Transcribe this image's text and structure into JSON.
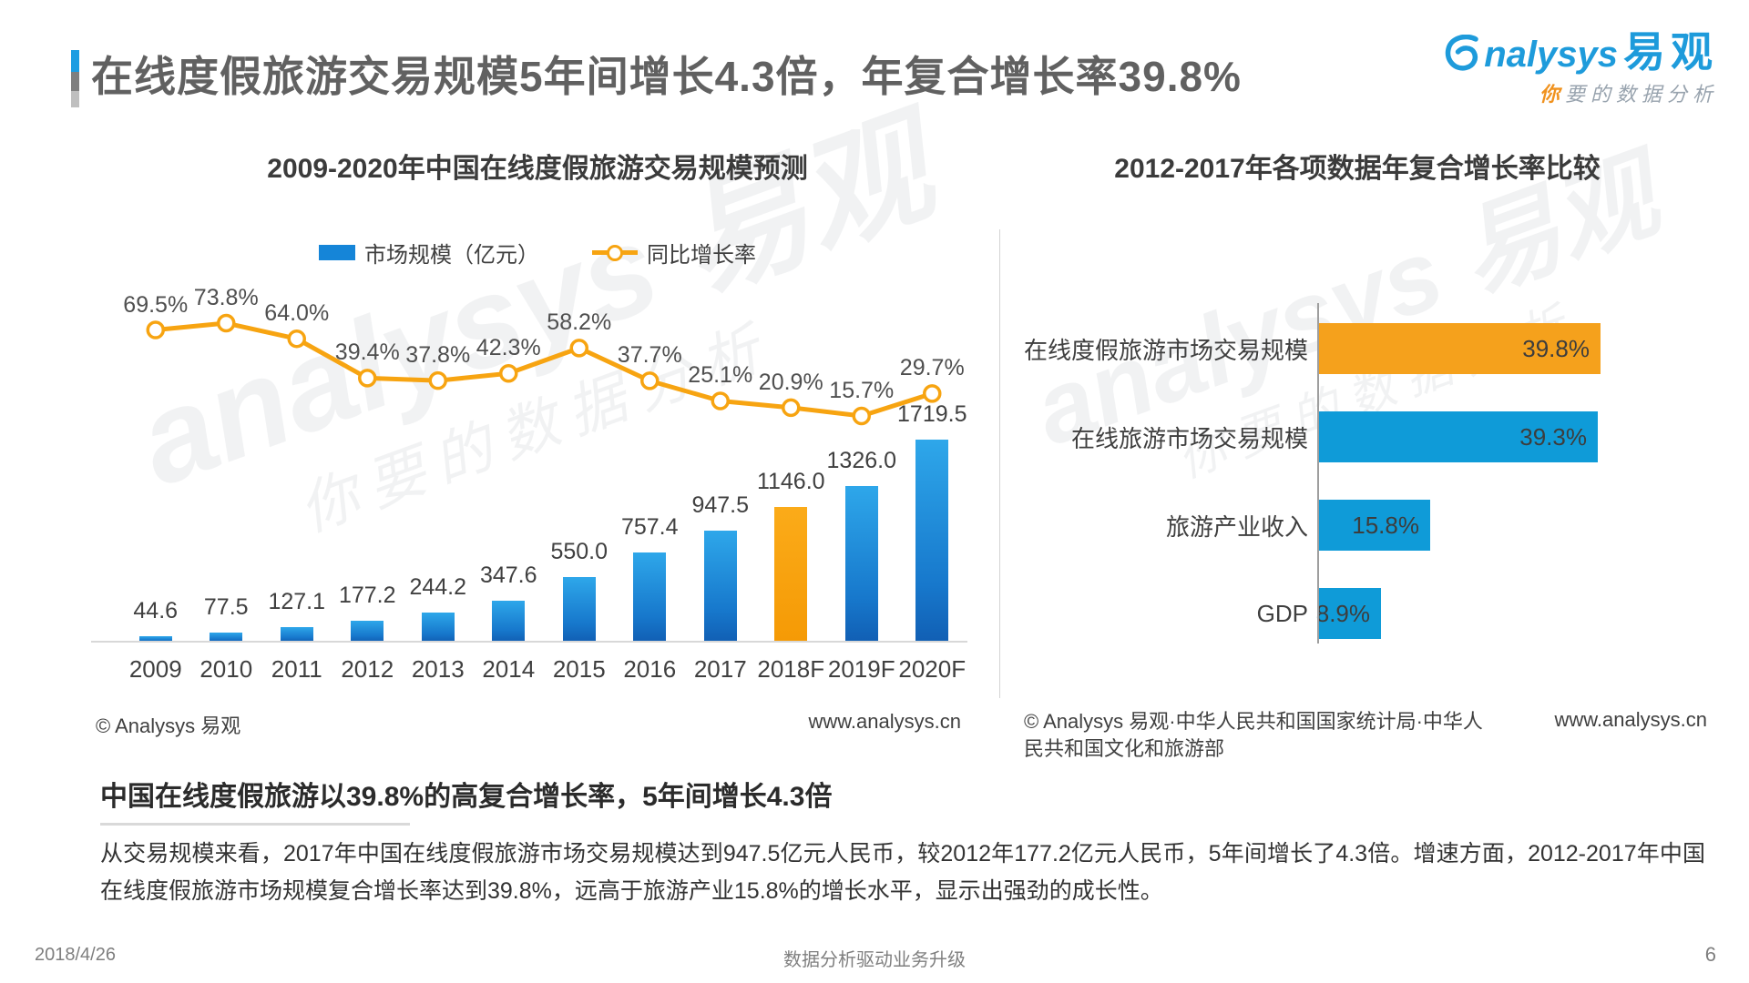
{
  "header": {
    "title": "在线度假旅游交易规模5年间增长4.3倍，年复合增长率39.8%",
    "logo": {
      "brand_rest": "nalysys",
      "brand_cn": "易观",
      "tagline_first": "你",
      "tagline_rest": "要的数据分析"
    }
  },
  "watermark": {
    "line1": "analysys 易观",
    "line2": "你要的数据分析"
  },
  "chart_data": [
    {
      "type": "bar+line",
      "title": "2009-2020年中国在线度假旅游交易规模预测",
      "categories": [
        "2009",
        "2010",
        "2011",
        "2012",
        "2013",
        "2014",
        "2015",
        "2016",
        "2017",
        "2018F",
        "2019F",
        "2020F"
      ],
      "series": [
        {
          "name": "市场规模（亿元）",
          "type": "bar",
          "values": [
            44.6,
            77.5,
            127.1,
            177.2,
            244.2,
            347.6,
            550.0,
            757.4,
            947.5,
            1146.0,
            1326.0,
            1719.5
          ],
          "labels": [
            "44.6",
            "77.5",
            "127.1",
            "177.2",
            "244.2",
            "347.6",
            "550.0",
            "757.4",
            "947.5",
            "1146.0",
            "1326.0",
            "1719.5"
          ],
          "color": "#1778CC",
          "highlight_index": 9,
          "highlight_color": "#F7A411"
        },
        {
          "name": "同比增长率",
          "type": "line",
          "values": [
            69.5,
            73.8,
            64.0,
            39.4,
            37.8,
            42.3,
            58.2,
            37.7,
            25.1,
            20.9,
            15.7,
            29.7
          ],
          "labels": [
            "69.5%",
            "73.8%",
            "64.0%",
            "39.4%",
            "37.8%",
            "42.3%",
            "58.2%",
            "37.7%",
            "25.1%",
            "20.9%",
            "15.7%",
            "29.7%"
          ],
          "color": "#F7A411"
        }
      ],
      "legend_position": "top",
      "source_left": "© Analysys 易观",
      "source_right": "www.analysys.cn"
    },
    {
      "type": "bar",
      "orientation": "horizontal",
      "title": "2012-2017年各项数据年复合增长率比较",
      "categories": [
        "在线度假旅游市场交易规模",
        "在线旅游市场交易规模",
        "旅游产业收入",
        "GDP"
      ],
      "values": [
        39.8,
        39.3,
        15.8,
        8.9
      ],
      "labels": [
        "39.8%",
        "39.3%",
        "15.8%",
        "8.9%"
      ],
      "colors": [
        "#F5A11C",
        "#0F9BD8",
        "#0F9BD8",
        "#0F9BD8"
      ],
      "xlim": [
        0,
        45
      ],
      "grid": false,
      "source_left": "© Analysys 易观·中华人民共和国国家统计局·中华人民共和国文化和旅游部",
      "source_right": "www.analysys.cn"
    }
  ],
  "summary": {
    "heading": "中国在线度假旅游以39.8%的高复合增长率，5年间增长4.3倍",
    "body": "从交易规模来看，2017年中国在线度假旅游市场交易规模达到947.5亿元人民币，较2012年177.2亿元人民币，5年间增长了4.3倍。增速方面，2012-2017年中国在线度假旅游市场规模复合增长率达到39.8%，远高于旅游产业15.8%的增长水平，显示出强劲的成长性。"
  },
  "footer": {
    "date": "2018/4/26",
    "center": "数据分析驱动业务升级",
    "page": "6"
  }
}
